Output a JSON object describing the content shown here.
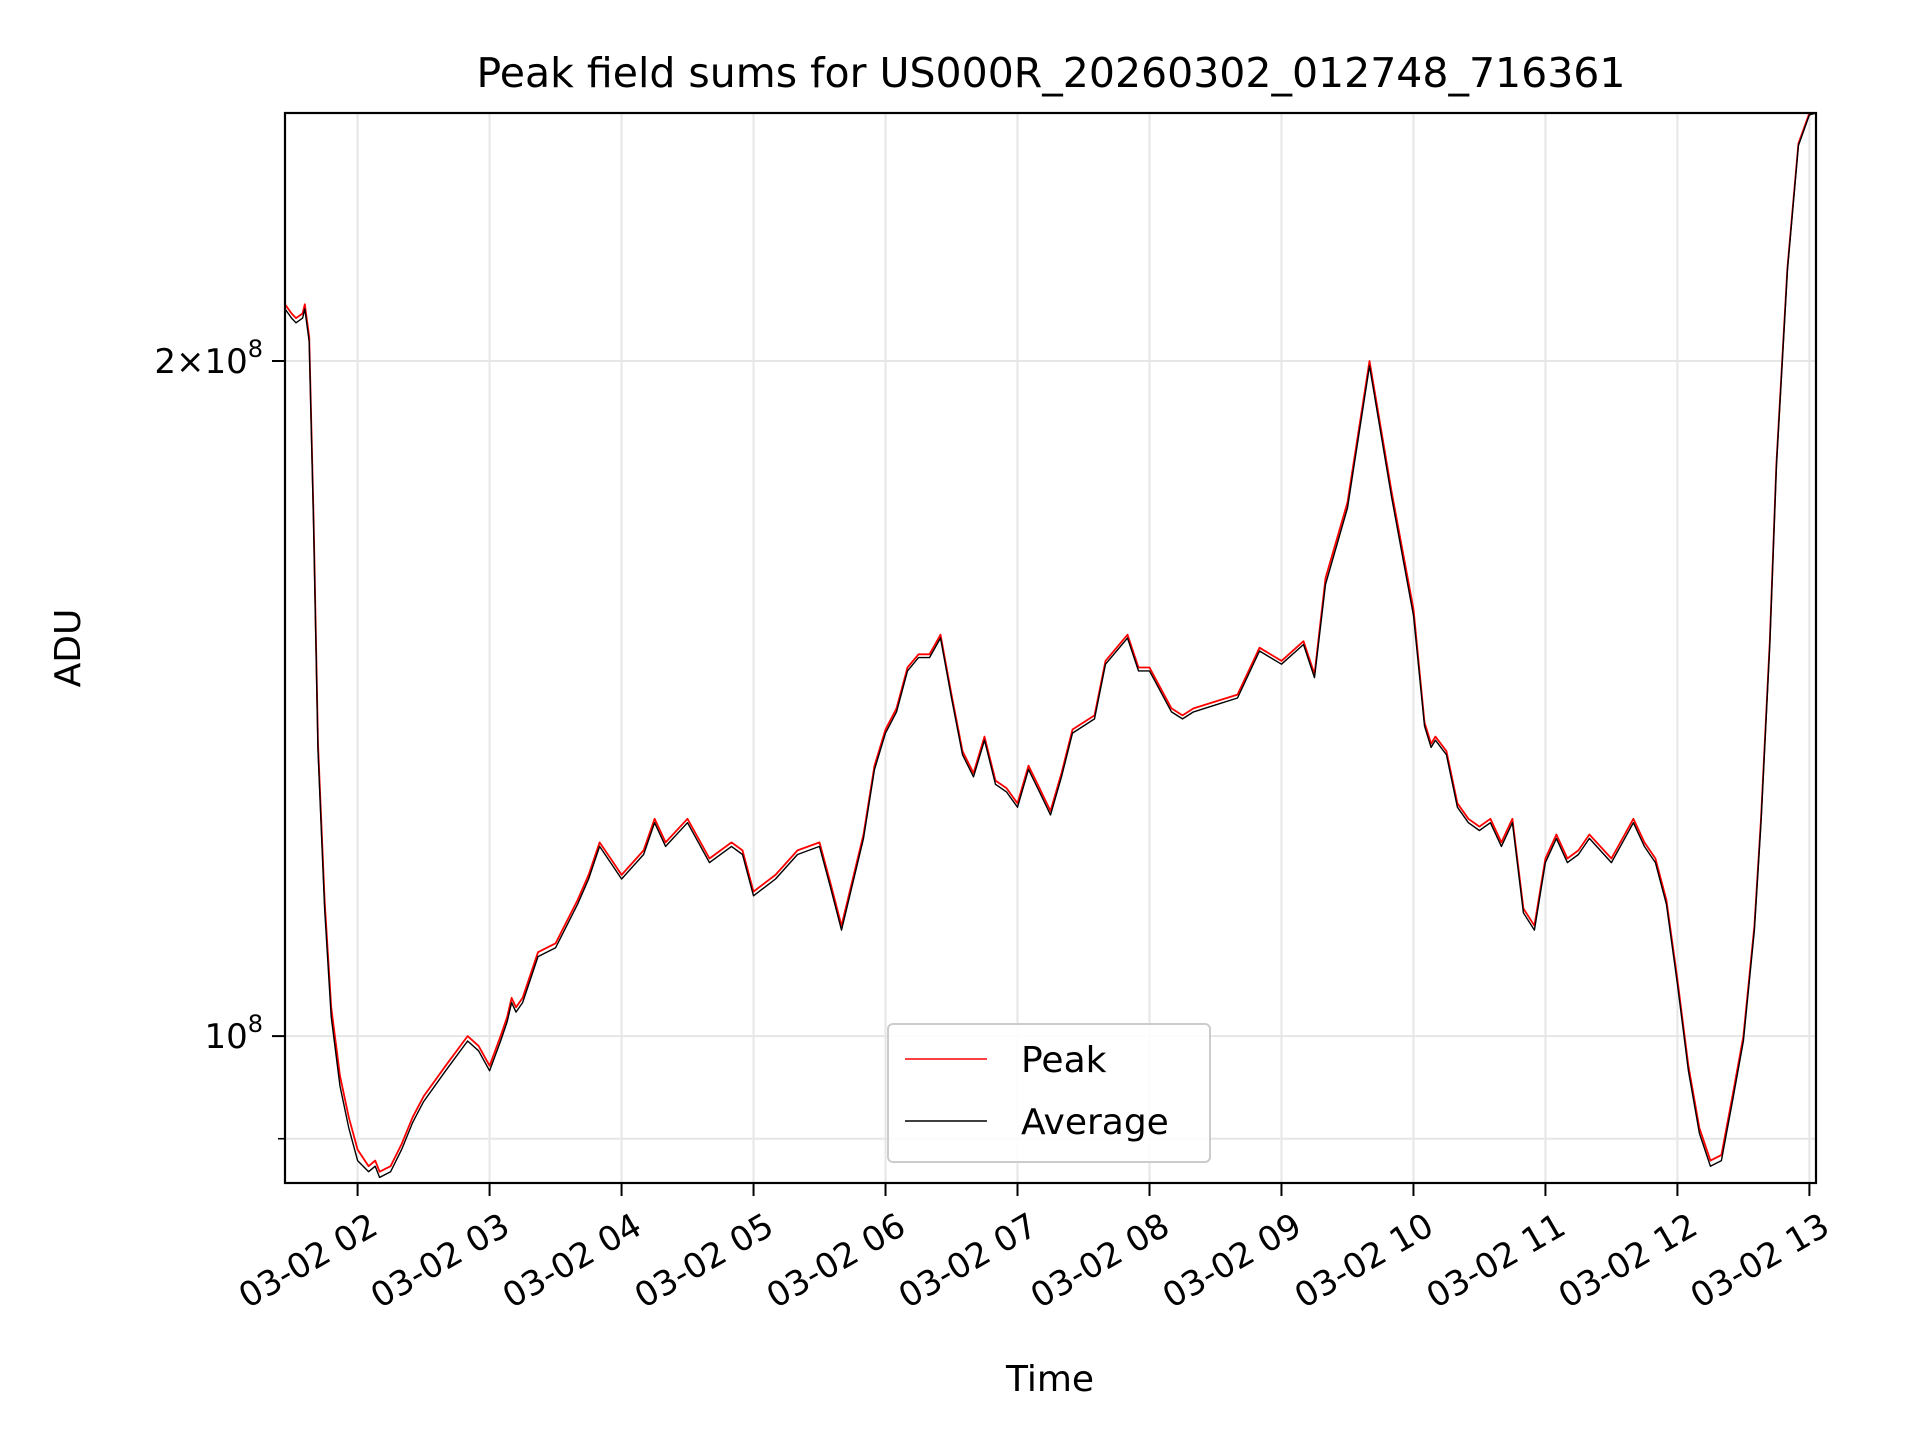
{
  "chart_data": {
    "type": "line",
    "title": "Peak field sums for US000R_20260302_012748_716361",
    "xlabel": "Time",
    "ylabel": "ADU",
    "y_scale": "log",
    "grid": true,
    "legend_position": "lower-center",
    "xlim": [
      "03-02 01:27",
      "03-02 13:03"
    ],
    "ylim": [
      86000000,
      258000000
    ],
    "x_ticks": [
      "03-02 02",
      "03-02 03",
      "03-02 04",
      "03-02 05",
      "03-02 06",
      "03-02 07",
      "03-02 08",
      "03-02 09",
      "03-02 10",
      "03-02 11",
      "03-02 12",
      "03-02 13"
    ],
    "y_ticks": [
      {
        "value": 200000000,
        "mantissa": "2",
        "exponent": "8"
      },
      {
        "value": 100000000,
        "mantissa": "",
        "exponent": "8"
      }
    ],
    "series": [
      {
        "name": "Peak",
        "color": "#ff0000",
        "x": [
          "03-02 01:27",
          "03-02 01:30",
          "03-02 01:32",
          "03-02 01:35",
          "03-02 01:36",
          "03-02 01:38",
          "03-02 01:40",
          "03-02 01:42",
          "03-02 01:45",
          "03-02 01:48",
          "03-02 01:52",
          "03-02 01:56",
          "03-02 02:00",
          "03-02 02:05",
          "03-02 02:08",
          "03-02 02:10",
          "03-02 02:15",
          "03-02 02:20",
          "03-02 02:25",
          "03-02 02:30",
          "03-02 02:40",
          "03-02 02:50",
          "03-02 02:55",
          "03-02 03:00",
          "03-02 03:05",
          "03-02 03:08",
          "03-02 03:10",
          "03-02 03:12",
          "03-02 03:15",
          "03-02 03:22",
          "03-02 03:30",
          "03-02 03:40",
          "03-02 03:45",
          "03-02 03:50",
          "03-02 03:55",
          "03-02 04:00",
          "03-02 04:10",
          "03-02 04:15",
          "03-02 04:20",
          "03-02 04:30",
          "03-02 04:40",
          "03-02 04:50",
          "03-02 04:55",
          "03-02 05:00",
          "03-02 05:05",
          "03-02 05:10",
          "03-02 05:20",
          "03-02 05:30",
          "03-02 05:35",
          "03-02 05:40",
          "03-02 05:50",
          "03-02 05:55",
          "03-02 06:00",
          "03-02 06:05",
          "03-02 06:10",
          "03-02 06:15",
          "03-02 06:20",
          "03-02 06:25",
          "03-02 06:30",
          "03-02 06:35",
          "03-02 06:40",
          "03-02 06:45",
          "03-02 06:50",
          "03-02 06:55",
          "03-02 07:00",
          "03-02 07:05",
          "03-02 07:10",
          "03-02 07:15",
          "03-02 07:20",
          "03-02 07:25",
          "03-02 07:35",
          "03-02 07:40",
          "03-02 07:50",
          "03-02 07:55",
          "03-02 08:00",
          "03-02 08:10",
          "03-02 08:15",
          "03-02 08:20",
          "03-02 08:30",
          "03-02 08:40",
          "03-02 08:50",
          "03-02 09:00",
          "03-02 09:10",
          "03-02 09:15",
          "03-02 09:20",
          "03-02 09:30",
          "03-02 09:40",
          "03-02 09:50",
          "03-02 10:00",
          "03-02 10:05",
          "03-02 10:08",
          "03-02 10:10",
          "03-02 10:15",
          "03-02 10:20",
          "03-02 10:25",
          "03-02 10:30",
          "03-02 10:35",
          "03-02 10:40",
          "03-02 10:45",
          "03-02 10:50",
          "03-02 10:55",
          "03-02 11:00",
          "03-02 11:05",
          "03-02 11:10",
          "03-02 11:15",
          "03-02 11:20",
          "03-02 11:30",
          "03-02 11:40",
          "03-02 11:45",
          "03-02 11:50",
          "03-02 11:55",
          "03-02 12:00",
          "03-02 12:05",
          "03-02 12:10",
          "03-02 12:15",
          "03-02 12:20",
          "03-02 12:25",
          "03-02 12:30",
          "03-02 12:35",
          "03-02 12:38",
          "03-02 12:42",
          "03-02 12:45",
          "03-02 12:50",
          "03-02 12:55",
          "03-02 13:00",
          "03-02 13:03"
        ],
        "values": [
          212000000,
          210000000,
          209000000,
          210000000,
          212000000,
          205000000,
          170000000,
          135000000,
          115000000,
          103000000,
          96000000,
          92000000,
          89000000,
          87500000,
          88000000,
          87000000,
          87500000,
          89500000,
          92000000,
          94000000,
          97000000,
          100000000,
          99000000,
          97000000,
          100000000,
          102000000,
          104000000,
          103000000,
          104000000,
          109000000,
          110000000,
          115000000,
          118000000,
          122000000,
          120000000,
          118000000,
          121000000,
          125000000,
          122000000,
          125000000,
          120000000,
          122000000,
          121000000,
          116000000,
          117000000,
          118000000,
          121000000,
          122000000,
          117000000,
          112000000,
          123000000,
          132000000,
          137000000,
          140000000,
          146000000,
          148000000,
          148000000,
          151000000,
          142000000,
          134000000,
          131000000,
          136000000,
          130000000,
          129000000,
          127000000,
          132000000,
          129000000,
          126000000,
          131000000,
          137000000,
          139000000,
          147000000,
          151000000,
          146000000,
          146000000,
          140000000,
          139000000,
          140000000,
          141000000,
          142000000,
          149000000,
          147000000,
          150000000,
          145000000,
          160000000,
          173000000,
          200000000,
          175000000,
          155000000,
          138000000,
          135000000,
          136000000,
          134000000,
          127000000,
          125000000,
          124000000,
          125000000,
          122000000,
          125000000,
          114000000,
          112000000,
          120000000,
          123000000,
          120000000,
          121000000,
          123000000,
          120000000,
          125000000,
          122000000,
          120000000,
          115000000,
          106000000,
          97000000,
          91000000,
          88000000,
          88500000,
          94000000,
          100000000,
          112000000,
          125000000,
          150000000,
          180000000,
          220000000,
          250000000,
          258000000,
          258000000
        ]
      },
      {
        "name": "Average",
        "color": "#000000",
        "x": [
          "03-02 01:27",
          "03-02 01:30",
          "03-02 01:32",
          "03-02 01:35",
          "03-02 01:36",
          "03-02 01:38",
          "03-02 01:40",
          "03-02 01:42",
          "03-02 01:45",
          "03-02 01:48",
          "03-02 01:52",
          "03-02 01:56",
          "03-02 02:00",
          "03-02 02:05",
          "03-02 02:08",
          "03-02 02:10",
          "03-02 02:15",
          "03-02 02:20",
          "03-02 02:25",
          "03-02 02:30",
          "03-02 02:40",
          "03-02 02:50",
          "03-02 02:55",
          "03-02 03:00",
          "03-02 03:05",
          "03-02 03:08",
          "03-02 03:10",
          "03-02 03:12",
          "03-02 03:15",
          "03-02 03:22",
          "03-02 03:30",
          "03-02 03:40",
          "03-02 03:45",
          "03-02 03:50",
          "03-02 03:55",
          "03-02 04:00",
          "03-02 04:10",
          "03-02 04:15",
          "03-02 04:20",
          "03-02 04:30",
          "03-02 04:40",
          "03-02 04:50",
          "03-02 04:55",
          "03-02 05:00",
          "03-02 05:05",
          "03-02 05:10",
          "03-02 05:20",
          "03-02 05:30",
          "03-02 05:35",
          "03-02 05:40",
          "03-02 05:50",
          "03-02 05:55",
          "03-02 06:00",
          "03-02 06:05",
          "03-02 06:10",
          "03-02 06:15",
          "03-02 06:20",
          "03-02 06:25",
          "03-02 06:30",
          "03-02 06:35",
          "03-02 06:40",
          "03-02 06:45",
          "03-02 06:50",
          "03-02 06:55",
          "03-02 07:00",
          "03-02 07:05",
          "03-02 07:10",
          "03-02 07:15",
          "03-02 07:20",
          "03-02 07:25",
          "03-02 07:35",
          "03-02 07:40",
          "03-02 07:50",
          "03-02 07:55",
          "03-02 08:00",
          "03-02 08:10",
          "03-02 08:15",
          "03-02 08:20",
          "03-02 08:30",
          "03-02 08:40",
          "03-02 08:50",
          "03-02 09:00",
          "03-02 09:10",
          "03-02 09:15",
          "03-02 09:20",
          "03-02 09:30",
          "03-02 09:40",
          "03-02 09:50",
          "03-02 10:00",
          "03-02 10:05",
          "03-02 10:08",
          "03-02 10:10",
          "03-02 10:15",
          "03-02 10:20",
          "03-02 10:25",
          "03-02 10:30",
          "03-02 10:35",
          "03-02 10:40",
          "03-02 10:45",
          "03-02 10:50",
          "03-02 10:55",
          "03-02 11:00",
          "03-02 11:05",
          "03-02 11:10",
          "03-02 11:15",
          "03-02 11:20",
          "03-02 11:30",
          "03-02 11:40",
          "03-02 11:45",
          "03-02 11:50",
          "03-02 11:55",
          "03-02 12:00",
          "03-02 12:05",
          "03-02 12:10",
          "03-02 12:15",
          "03-02 12:20",
          "03-02 12:25",
          "03-02 12:30",
          "03-02 12:35",
          "03-02 12:38",
          "03-02 12:42",
          "03-02 12:45",
          "03-02 12:50",
          "03-02 12:55",
          "03-02 13:00",
          "03-02 13:03"
        ],
        "values": [
          211000000,
          209000000,
          208000000,
          209000000,
          211000000,
          204000000,
          169000000,
          134000000,
          114000000,
          102000000,
          95000000,
          91000000,
          88000000,
          87000000,
          87500000,
          86500000,
          87000000,
          89000000,
          91500000,
          93500000,
          96500000,
          99500000,
          98500000,
          96500000,
          99500000,
          101500000,
          103500000,
          102500000,
          103500000,
          108500000,
          109500000,
          114500000,
          117500000,
          121500000,
          119500000,
          117500000,
          120500000,
          124500000,
          121500000,
          124500000,
          119500000,
          121500000,
          120500000,
          115500000,
          116500000,
          117500000,
          120500000,
          121500000,
          116500000,
          111500000,
          122500000,
          131500000,
          136500000,
          139500000,
          145500000,
          147500000,
          147500000,
          150500000,
          141500000,
          133500000,
          130500000,
          135500000,
          129500000,
          128500000,
          126500000,
          131500000,
          128500000,
          125500000,
          130500000,
          136500000,
          138500000,
          146500000,
          150500000,
          145500000,
          145500000,
          139500000,
          138500000,
          139500000,
          140500000,
          141500000,
          148500000,
          146500000,
          149500000,
          144500000,
          159000000,
          172000000,
          199000000,
          174000000,
          154000000,
          137500000,
          134500000,
          135500000,
          133500000,
          126500000,
          124500000,
          123500000,
          124500000,
          121500000,
          124500000,
          113500000,
          111500000,
          119500000,
          122500000,
          119500000,
          120500000,
          122500000,
          119500000,
          124500000,
          121500000,
          119500000,
          114500000,
          105500000,
          96500000,
          90500000,
          87500000,
          88000000,
          93500000,
          99500000,
          111500000,
          124500000,
          149500000,
          179500000,
          219500000,
          249500000,
          257500000,
          258000000
        ]
      }
    ]
  }
}
